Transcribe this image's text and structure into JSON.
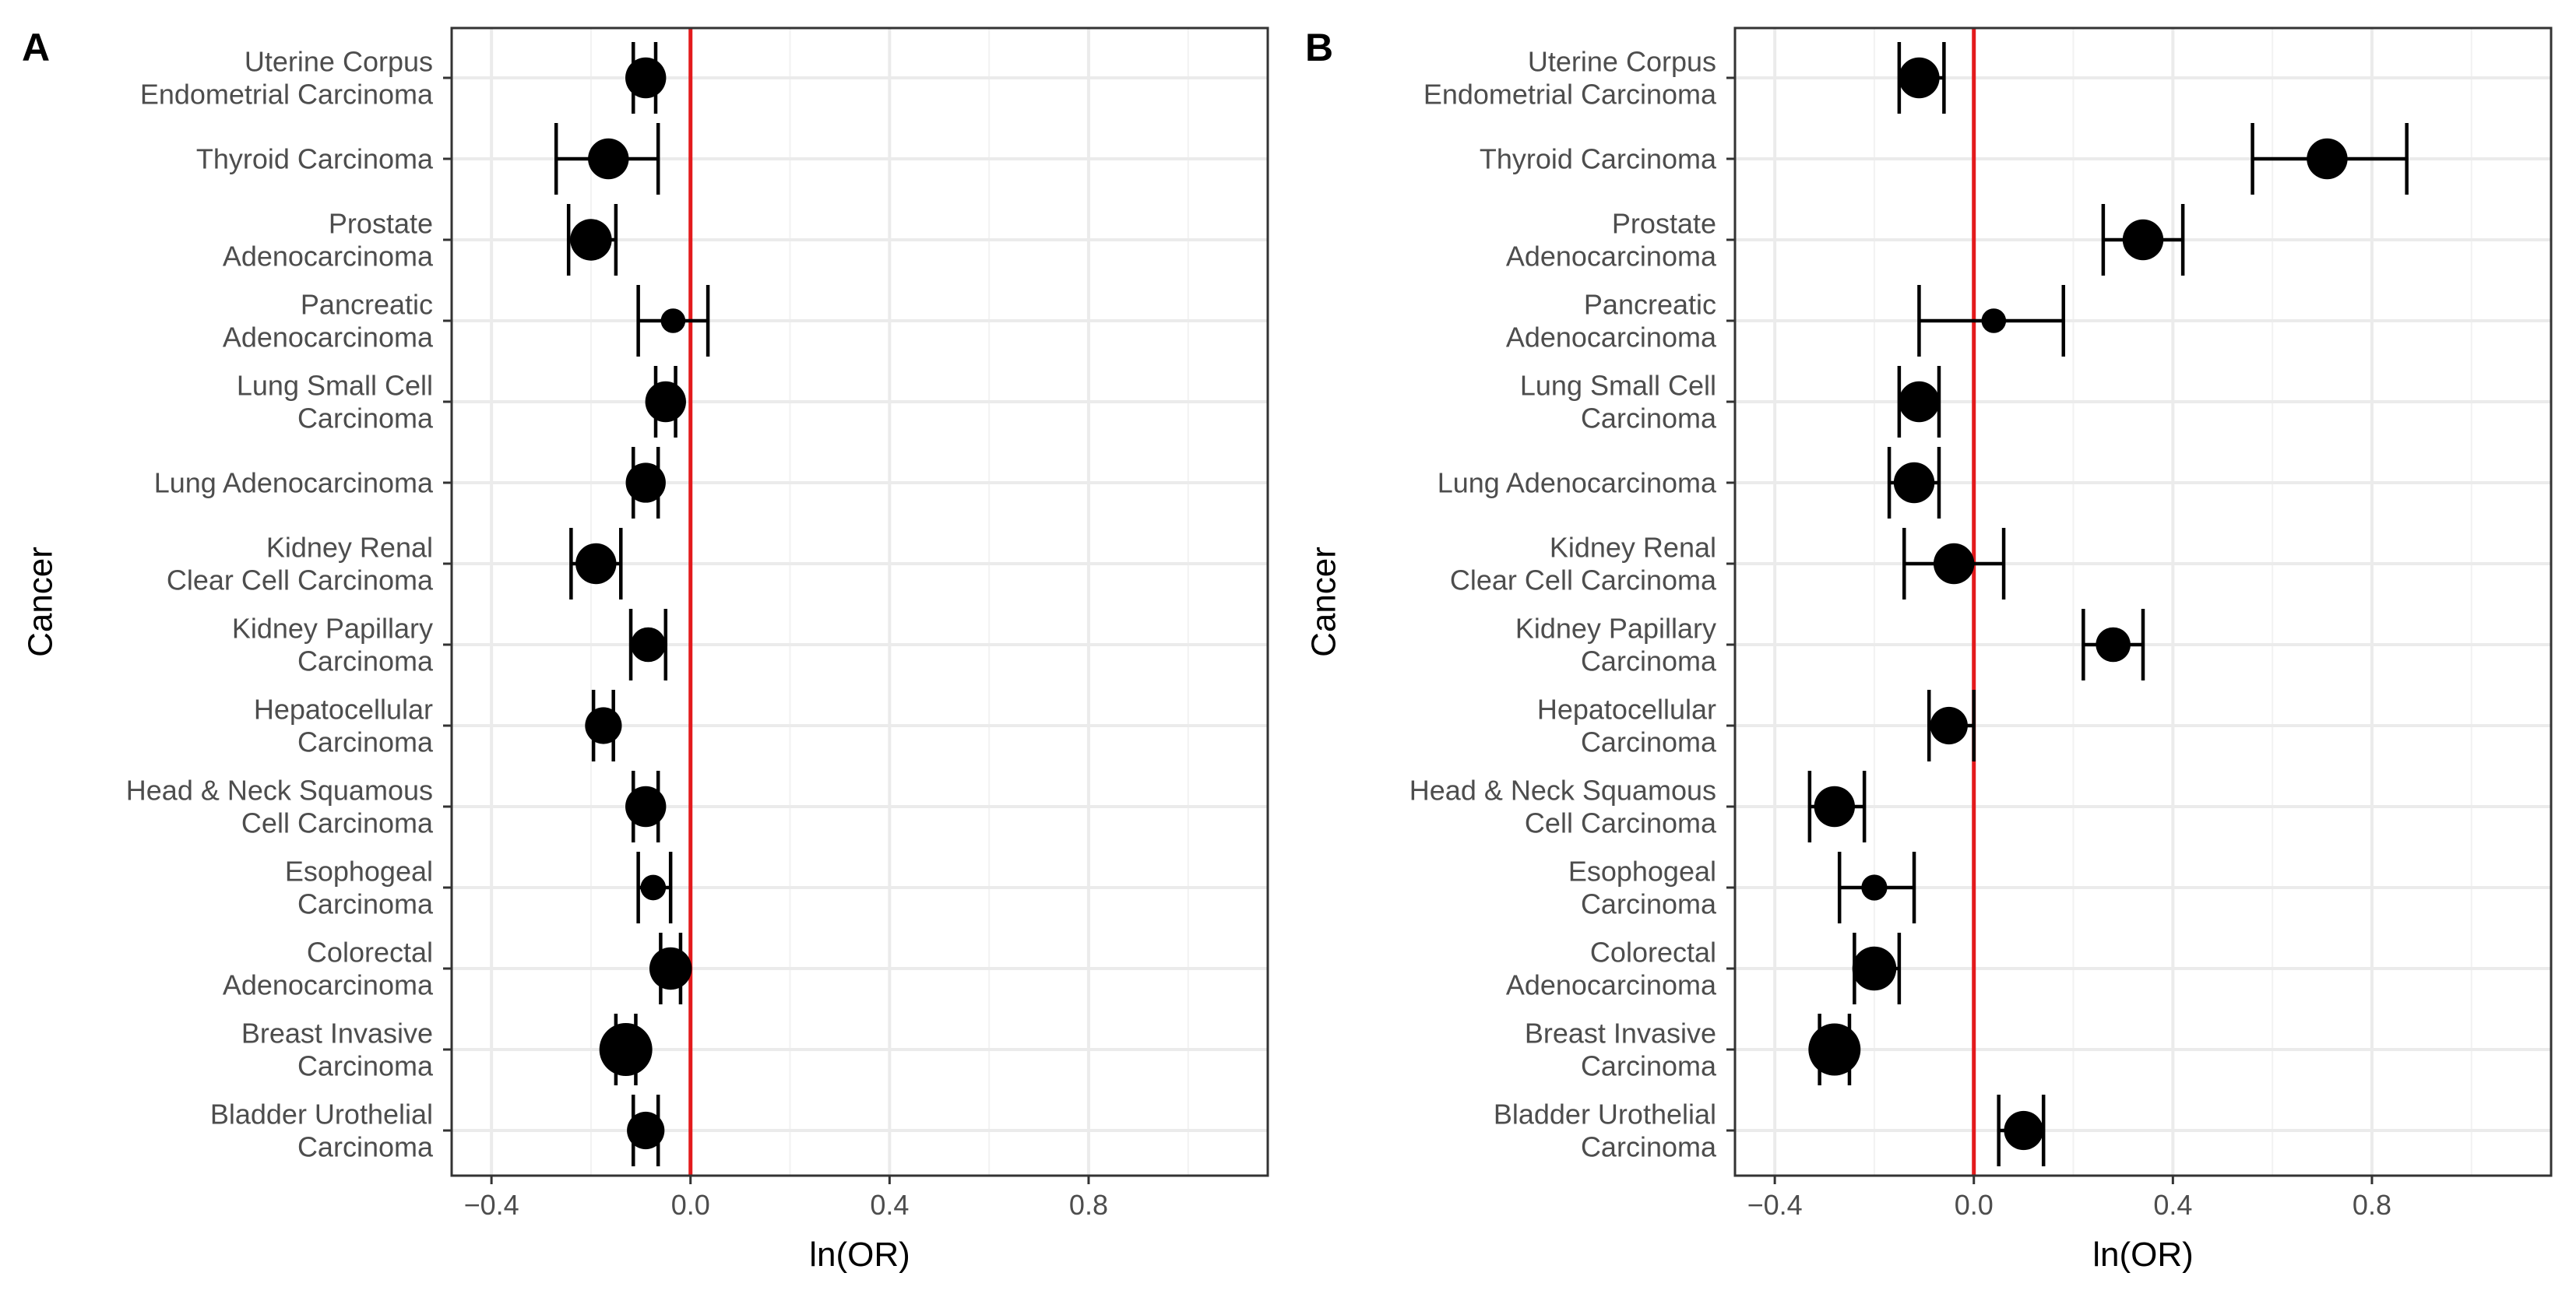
{
  "chart_data": [
    {
      "panel_label": "A",
      "type": "forest",
      "xlabel": "ln(OR)",
      "ylabel": "Cancer",
      "xlim": [
        -0.48,
        1.16
      ],
      "xticks": [
        -0.4,
        0.0,
        0.4,
        0.8
      ],
      "xtick_labels": [
        "−0.4",
        "0.0",
        "0.4",
        "0.8"
      ],
      "reference_line": 0,
      "reference_color": "#e31a1c",
      "grid": true,
      "categories": [
        [
          "Uterine Corpus",
          "Endometrial Carcinoma"
        ],
        [
          "Thyroid Carcinoma"
        ],
        [
          "Prostate",
          "Adenocarcinoma"
        ],
        [
          "Pancreatic",
          "Adenocarcinoma"
        ],
        [
          "Lung Small Cell",
          "Carcinoma"
        ],
        [
          "Lung Adenocarcinoma"
        ],
        [
          "Kidney Renal",
          "Clear Cell Carcinoma"
        ],
        [
          "Kidney Papillary",
          "Carcinoma"
        ],
        [
          "Hepatocellular",
          "Carcinoma"
        ],
        [
          "Head & Neck Squamous",
          "Cell Carcinoma"
        ],
        [
          "Esophogeal",
          "Carcinoma"
        ],
        [
          "Colorectal",
          "Adenocarcinoma"
        ],
        [
          "Breast Invasive",
          "Carcinoma"
        ],
        [
          "Bladder Urothelial",
          "Carcinoma"
        ]
      ],
      "estimate": [
        -0.09,
        -0.165,
        -0.2,
        -0.035,
        -0.05,
        -0.09,
        -0.19,
        -0.085,
        -0.175,
        -0.09,
        -0.075,
        -0.04,
        -0.13,
        -0.09
      ],
      "lower": [
        -0.115,
        -0.27,
        -0.245,
        -0.105,
        -0.07,
        -0.115,
        -0.24,
        -0.12,
        -0.195,
        -0.115,
        -0.105,
        -0.06,
        -0.15,
        -0.115
      ],
      "upper": [
        -0.07,
        -0.065,
        -0.15,
        0.035,
        -0.03,
        -0.065,
        -0.14,
        -0.05,
        -0.155,
        -0.065,
        -0.04,
        -0.02,
        -0.11,
        -0.065
      ],
      "point_size_rel": [
        0.7,
        0.7,
        0.72,
        0.3,
        0.7,
        0.68,
        0.7,
        0.55,
        0.6,
        0.7,
        0.32,
        0.74,
        1.0,
        0.62
      ]
    },
    {
      "panel_label": "B",
      "type": "forest",
      "xlabel": "ln(OR)",
      "ylabel": "Cancer",
      "xlim": [
        -0.48,
        1.16
      ],
      "xticks": [
        -0.4,
        0.0,
        0.4,
        0.8
      ],
      "xtick_labels": [
        "−0.4",
        "0.0",
        "0.4",
        "0.8"
      ],
      "reference_line": 0,
      "reference_color": "#e31a1c",
      "grid": true,
      "categories": [
        [
          "Uterine Corpus",
          "Endometrial Carcinoma"
        ],
        [
          "Thyroid Carcinoma"
        ],
        [
          "Prostate",
          "Adenocarcinoma"
        ],
        [
          "Pancreatic",
          "Adenocarcinoma"
        ],
        [
          "Lung Small Cell",
          "Carcinoma"
        ],
        [
          "Lung Adenocarcinoma"
        ],
        [
          "Kidney Renal",
          "Clear Cell Carcinoma"
        ],
        [
          "Kidney Papillary",
          "Carcinoma"
        ],
        [
          "Hepatocellular",
          "Carcinoma"
        ],
        [
          "Head & Neck Squamous",
          "Cell Carcinoma"
        ],
        [
          "Esophogeal",
          "Carcinoma"
        ],
        [
          "Colorectal",
          "Adenocarcinoma"
        ],
        [
          "Breast Invasive",
          "Carcinoma"
        ],
        [
          "Bladder Urothelial",
          "Carcinoma"
        ]
      ],
      "estimate": [
        -0.11,
        0.71,
        0.34,
        0.04,
        -0.11,
        -0.12,
        -0.04,
        0.28,
        -0.05,
        -0.28,
        -0.2,
        -0.2,
        -0.28,
        0.1
      ],
      "lower": [
        -0.15,
        0.56,
        0.26,
        -0.11,
        -0.15,
        -0.17,
        -0.14,
        0.22,
        -0.09,
        -0.33,
        -0.27,
        -0.24,
        -0.31,
        0.05
      ],
      "upper": [
        -0.06,
        0.87,
        0.42,
        0.18,
        -0.07,
        -0.07,
        0.06,
        0.34,
        0.0,
        -0.22,
        -0.12,
        -0.15,
        -0.25,
        0.14
      ],
      "point_size_rel": [
        0.7,
        0.7,
        0.7,
        0.3,
        0.7,
        0.7,
        0.7,
        0.55,
        0.62,
        0.7,
        0.33,
        0.78,
        0.98,
        0.66
      ]
    }
  ]
}
